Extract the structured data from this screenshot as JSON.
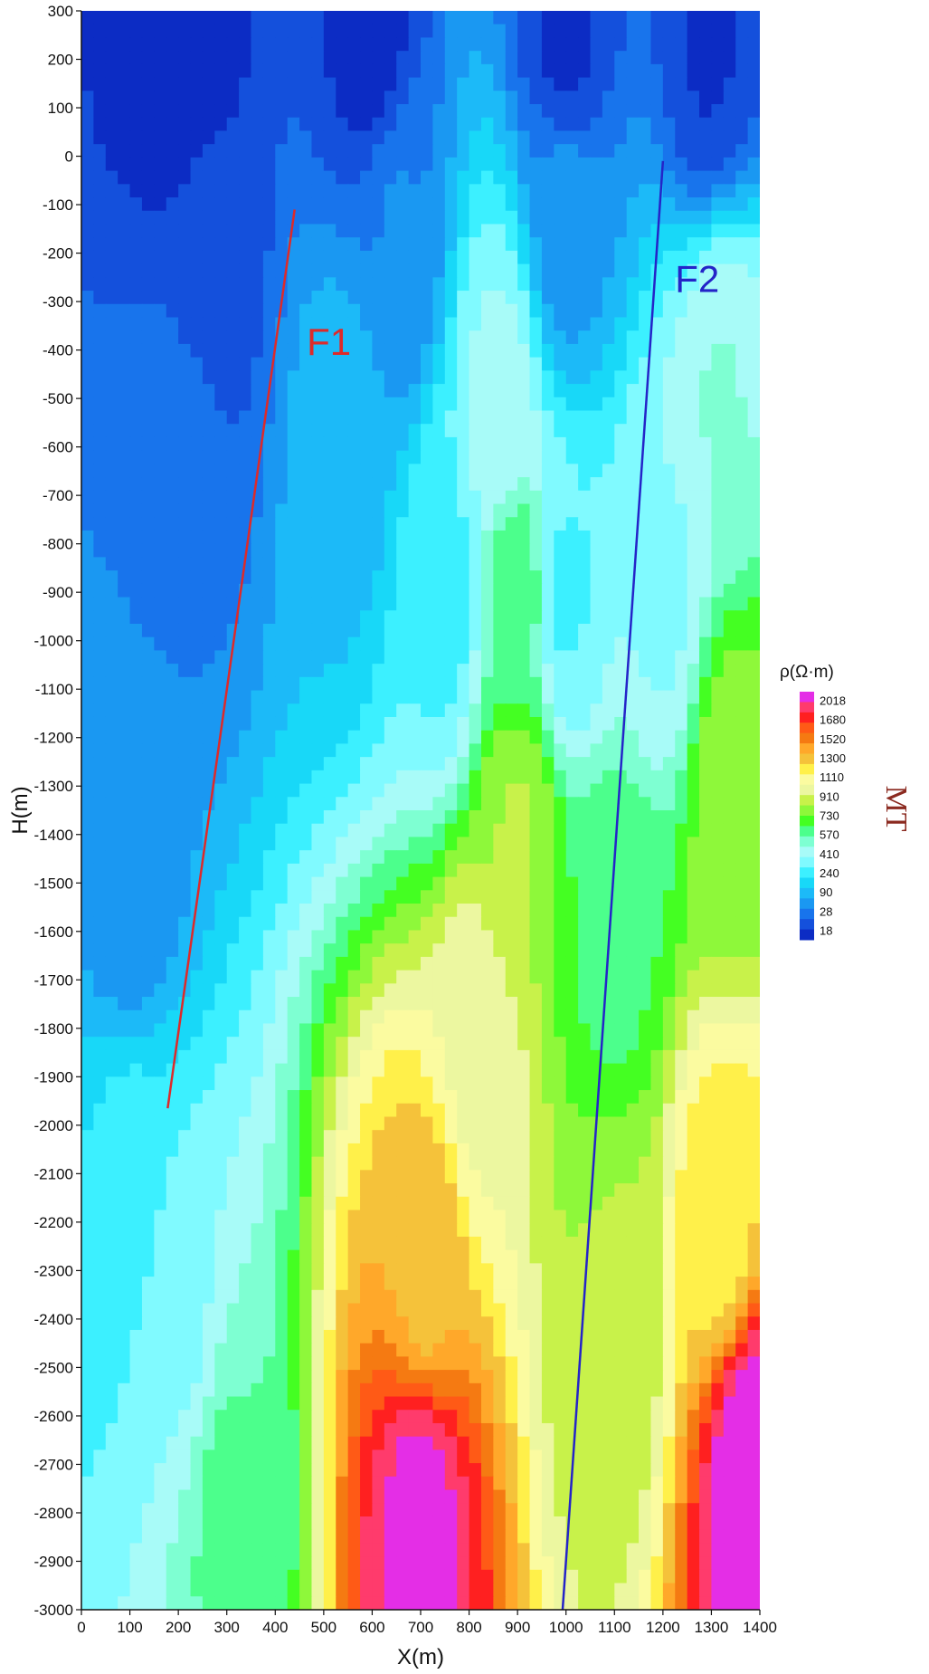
{
  "chart_data": {
    "type": "heatmap",
    "xlabel": "X(m)",
    "ylabel": "H(m)",
    "xlim": [
      0,
      1400
    ],
    "ylim": [
      -3000,
      300
    ],
    "x_ticks": [
      "0",
      "100",
      "200",
      "300",
      "400",
      "500",
      "600",
      "700",
      "800",
      "900",
      "1000",
      "1100",
      "1200",
      "1300",
      "1400"
    ],
    "y_ticks": [
      "300",
      "200",
      "100",
      "0",
      "-100",
      "-200",
      "-300",
      "-400",
      "-500",
      "-600",
      "-700",
      "-800",
      "-900",
      "-1000",
      "-1100",
      "-1200",
      "-1300",
      "-1400",
      "-1500",
      "-1600",
      "-1700",
      "-1800",
      "-1900",
      "-2000",
      "-2100",
      "-2200",
      "-2300",
      "-2400",
      "-2500",
      "-2600",
      "-2700",
      "-2800",
      "-2900",
      "-3000"
    ],
    "colorbar": {
      "title": "ρ(Ω·m)",
      "labels": [
        "2018",
        "1680",
        "1520",
        "1300",
        "1110",
        "910",
        "730",
        "570",
        "410",
        "240",
        "90",
        "28",
        "18"
      ],
      "colors": [
        "#e42ee6",
        "#ff3b6c",
        "#ff2020",
        "#ff5a16",
        "#f57a12",
        "#ffa82a",
        "#f5c23a",
        "#fff04a",
        "#fbfba0",
        "#ecf7a0",
        "#c8f24a",
        "#8ef83a",
        "#44ff22",
        "#4cff8c",
        "#7effd2",
        "#a8fbf8",
        "#80faff",
        "#3cf0ff",
        "#18d8f8",
        "#1cbaf8",
        "#1a98f2",
        "#1874ec",
        "#1450dc",
        "#0c2cc4"
      ]
    },
    "faults": [
      {
        "name": "F1",
        "color": "#dd2a2a",
        "from": [
          440,
          -110
        ],
        "to": [
          178,
          -1965
        ]
      },
      {
        "name": "F2",
        "color": "#2424c8",
        "from": [
          1200,
          -10
        ],
        "to": [
          993,
          -3000
        ]
      }
    ],
    "method_label": "MT",
    "value_centers": [
      {
        "x": 700,
        "y": -2800,
        "rho": 2050
      },
      {
        "x": 1380,
        "y": -2700,
        "rho": 2100
      },
      {
        "x": 710,
        "y": -2300,
        "rho": 1550
      },
      {
        "x": 1320,
        "y": -2200,
        "rho": 1450
      },
      {
        "x": 820,
        "y": -1850,
        "rho": 1300
      },
      {
        "x": 900,
        "y": -1400,
        "rho": 1150
      },
      {
        "x": 900,
        "y": -900,
        "rho": 930
      },
      {
        "x": 870,
        "y": -500,
        "rho": 730
      },
      {
        "x": 1100,
        "y": -2350,
        "rho": 1150
      },
      {
        "x": 1100,
        "y": -1600,
        "rho": 950
      },
      {
        "x": 1200,
        "y": -900,
        "rho": 700
      },
      {
        "x": 1320,
        "y": -500,
        "rho": 800
      },
      {
        "x": 1340,
        "y": -1300,
        "rho": 1100
      },
      {
        "x": 300,
        "y": -2800,
        "rho": 900
      },
      {
        "x": 200,
        "y": -2400,
        "rho": 700
      },
      {
        "x": 100,
        "y": -2100,
        "rho": 560
      },
      {
        "x": 100,
        "y": -1500,
        "rho": 300
      },
      {
        "x": 200,
        "y": -600,
        "rho": 260
      },
      {
        "x": 250,
        "y": -200,
        "rho": 120
      },
      {
        "x": 200,
        "y": 250,
        "rho": 18
      },
      {
        "x": 600,
        "y": 250,
        "rho": 60
      },
      {
        "x": 1000,
        "y": 250,
        "rho": 90
      },
      {
        "x": 1300,
        "y": 250,
        "rho": 100
      },
      {
        "x": 650,
        "y": -150,
        "rho": 280
      },
      {
        "x": 1000,
        "y": -150,
        "rho": 330
      },
      {
        "x": 550,
        "y": -600,
        "rho": 420
      },
      {
        "x": 750,
        "y": -900,
        "rho": 600
      },
      {
        "x": 1000,
        "y": -900,
        "rho": 620
      }
    ]
  }
}
